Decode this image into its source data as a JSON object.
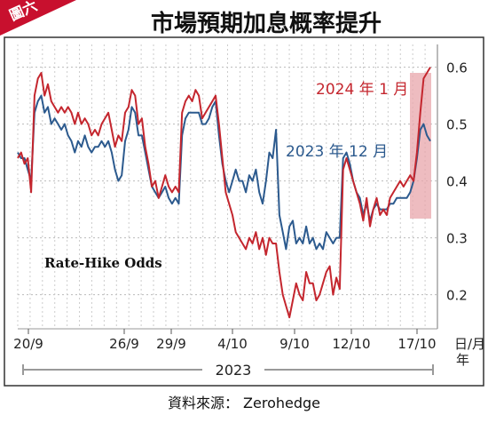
{
  "figure_tag": "圖六",
  "source_note": "資料來源： Zerohedge",
  "chart_data": {
    "type": "line",
    "title": "市場預期加息概率提升",
    "inner_label": "Rate-Hike Odds",
    "xlabel": "日/月\n年",
    "year_label": "2023",
    "x_ticks": [
      "20/9",
      "26/9",
      "29/9",
      "4/10",
      "9/10",
      "12/10",
      "17/10"
    ],
    "y_ticks": [
      0.2,
      0.3,
      0.4,
      0.5,
      0.6
    ],
    "ylim": [
      0.14,
      0.64
    ],
    "grid": true,
    "highlight_band": "2024 年 1 月 spike near 17/10",
    "series": [
      {
        "name": "2024 年 1 月",
        "color": "#c4262e",
        "values": [
          0.44,
          0.45,
          0.43,
          0.44,
          0.38,
          0.55,
          0.58,
          0.59,
          0.55,
          0.57,
          0.54,
          0.53,
          0.52,
          0.53,
          0.52,
          0.53,
          0.52,
          0.5,
          0.52,
          0.5,
          0.51,
          0.5,
          0.48,
          0.49,
          0.48,
          0.5,
          0.51,
          0.52,
          0.49,
          0.46,
          0.48,
          0.47,
          0.52,
          0.53,
          0.56,
          0.55,
          0.5,
          0.51,
          0.46,
          0.43,
          0.39,
          0.4,
          0.37,
          0.39,
          0.41,
          0.39,
          0.38,
          0.39,
          0.38,
          0.52,
          0.54,
          0.55,
          0.54,
          0.56,
          0.55,
          0.51,
          0.52,
          0.53,
          0.54,
          0.55,
          0.5,
          0.44,
          0.38,
          0.36,
          0.34,
          0.31,
          0.3,
          0.29,
          0.28,
          0.3,
          0.29,
          0.31,
          0.28,
          0.3,
          0.27,
          0.3,
          0.29,
          0.29,
          0.24,
          0.2,
          0.18,
          0.16,
          0.19,
          0.22,
          0.2,
          0.19,
          0.24,
          0.22,
          0.22,
          0.19,
          0.2,
          0.22,
          0.24,
          0.25,
          0.2,
          0.23,
          0.21,
          0.42,
          0.44,
          0.42,
          0.4,
          0.38,
          0.36,
          0.33,
          0.37,
          0.32,
          0.35,
          0.37,
          0.34,
          0.35,
          0.34,
          0.37,
          0.38,
          0.39,
          0.4,
          0.39,
          0.4,
          0.41,
          0.4,
          0.45,
          0.52,
          0.58,
          0.59,
          0.6
        ]
      },
      {
        "name": "2023 年 12 月",
        "color": "#2c5a8e",
        "values": [
          0.45,
          0.44,
          0.44,
          0.42,
          0.4,
          0.52,
          0.54,
          0.55,
          0.52,
          0.53,
          0.5,
          0.51,
          0.5,
          0.49,
          0.5,
          0.48,
          0.47,
          0.45,
          0.47,
          0.46,
          0.48,
          0.46,
          0.45,
          0.46,
          0.46,
          0.47,
          0.46,
          0.47,
          0.45,
          0.42,
          0.4,
          0.41,
          0.47,
          0.49,
          0.53,
          0.52,
          0.48,
          0.48,
          0.45,
          0.42,
          0.39,
          0.38,
          0.37,
          0.38,
          0.39,
          0.37,
          0.36,
          0.37,
          0.36,
          0.48,
          0.51,
          0.52,
          0.52,
          0.52,
          0.52,
          0.5,
          0.5,
          0.51,
          0.53,
          0.54,
          0.48,
          0.43,
          0.4,
          0.38,
          0.4,
          0.42,
          0.4,
          0.4,
          0.38,
          0.41,
          0.4,
          0.42,
          0.38,
          0.36,
          0.4,
          0.45,
          0.44,
          0.49,
          0.34,
          0.31,
          0.28,
          0.32,
          0.33,
          0.29,
          0.3,
          0.29,
          0.32,
          0.29,
          0.3,
          0.28,
          0.29,
          0.28,
          0.31,
          0.3,
          0.29,
          0.3,
          0.3,
          0.44,
          0.45,
          0.43,
          0.4,
          0.38,
          0.37,
          0.34,
          0.36,
          0.33,
          0.35,
          0.36,
          0.35,
          0.35,
          0.35,
          0.36,
          0.36,
          0.37,
          0.37,
          0.37,
          0.37,
          0.38,
          0.4,
          0.44,
          0.49,
          0.5,
          0.48,
          0.47
        ]
      }
    ]
  }
}
